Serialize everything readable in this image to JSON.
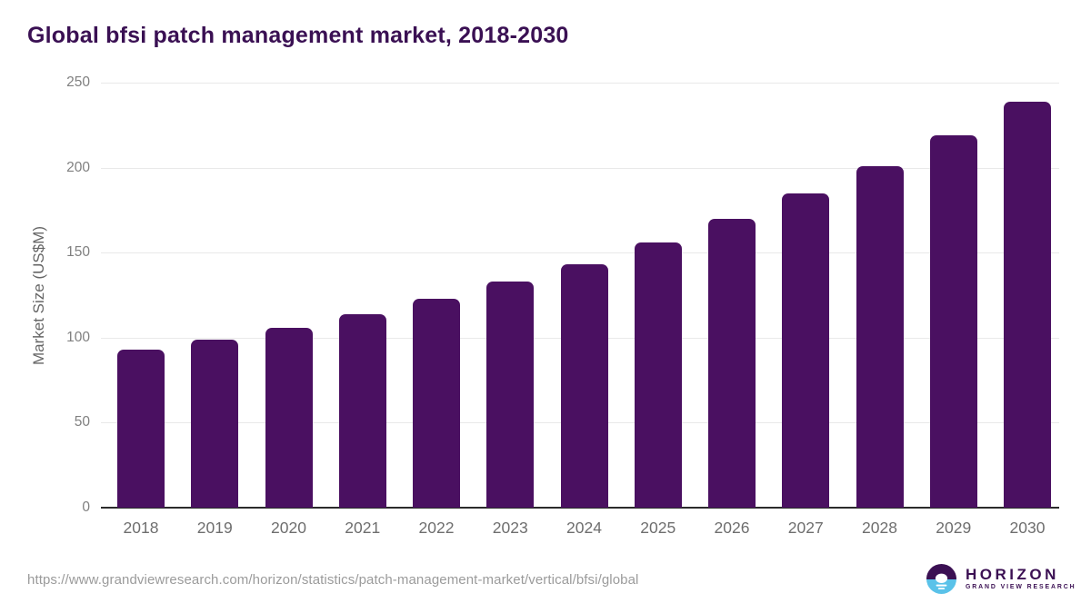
{
  "header": {
    "title": "Global bfsi patch management market, 2018-2030"
  },
  "chart_data": {
    "type": "bar",
    "title": "Global bfsi patch management market, 2018-2030",
    "categories": [
      "2018",
      "2019",
      "2020",
      "2021",
      "2022",
      "2023",
      "2024",
      "2025",
      "2026",
      "2027",
      "2028",
      "2029",
      "2030"
    ],
    "values": [
      93,
      99,
      106,
      114,
      123,
      133,
      143,
      156,
      170,
      185,
      201,
      219,
      239
    ],
    "xlabel": "",
    "ylabel": "Market Size (US$M)",
    "ylim": [
      0,
      250
    ],
    "yticks": [
      0,
      50,
      100,
      150,
      200,
      250
    ],
    "grid": true,
    "legend": false,
    "bar_color": "#4a1061"
  },
  "footer": {
    "source_url": "https://www.grandviewresearch.com/horizon/statistics/patch-management-market/vertical/bfsi/global"
  },
  "logo": {
    "name": "HORIZON",
    "subtitle": "GRAND VIEW RESEARCH",
    "icon": "horizon-sun-circle",
    "purple": "#3b1053",
    "blue": "#5ac2e9"
  },
  "colors": {
    "title_text": "#3a1053",
    "axis_text": "#808080",
    "gridline": "#e9e9e9",
    "baseline": "#2b2b2b",
    "source_text": "#9b9b9b",
    "background": "#ffffff"
  }
}
